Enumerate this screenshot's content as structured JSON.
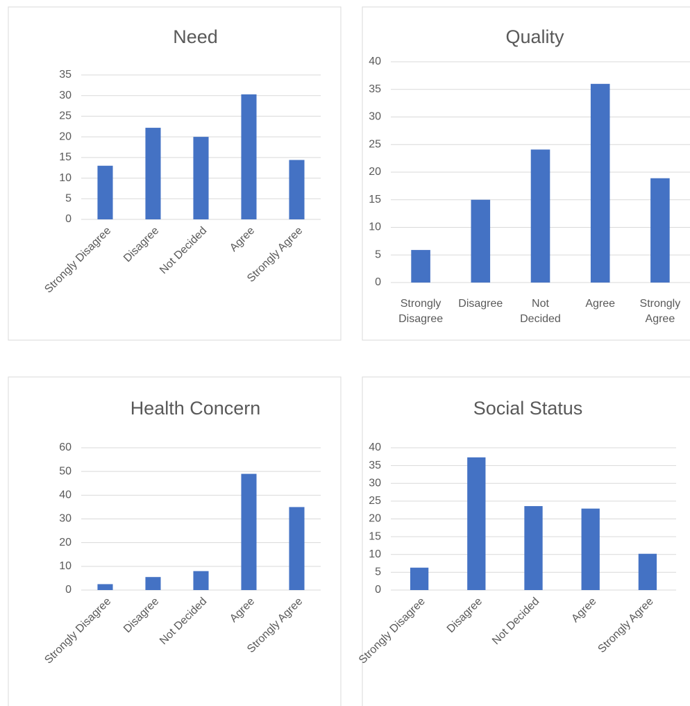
{
  "chart_data": [
    {
      "type": "bar",
      "title": "Need",
      "categories": [
        "Strongly Disagree",
        "Disagree",
        "Not Decided",
        "Agree",
        "Strongly Agree"
      ],
      "values": [
        13,
        22.2,
        20,
        30.3,
        14.4
      ],
      "color": "#4472c4",
      "ylim": [
        0,
        35
      ],
      "yticks": [
        0,
        5,
        10,
        15,
        20,
        25,
        30,
        35
      ],
      "grid": true
    },
    {
      "type": "bar",
      "title": "Quality",
      "categories": [
        "Strongly Disagree",
        "Disagree",
        "Not Decided",
        "Agree",
        "Strongly Agree"
      ],
      "values": [
        5.9,
        15,
        24.1,
        36,
        18.9
      ],
      "color": "#4472c4",
      "ylim": [
        0,
        40
      ],
      "yticks": [
        0,
        5,
        10,
        15,
        20,
        25,
        30,
        35,
        40
      ],
      "grid": true
    },
    {
      "type": "bar",
      "title": "Health Concern",
      "categories": [
        "Strongly Disagree",
        "Disagree",
        "Not Decided",
        "Agree",
        "Strongly Agree"
      ],
      "values": [
        2.5,
        5.5,
        8,
        49,
        35
      ],
      "color": "#4472c4",
      "ylim": [
        0,
        60
      ],
      "yticks": [
        0,
        10,
        20,
        30,
        40,
        50,
        60
      ],
      "grid": true
    },
    {
      "type": "bar",
      "title": "Social Status",
      "categories": [
        "Strongly Disagree",
        "Disagree",
        "Not Decided",
        "Agree",
        "Strongly Agree"
      ],
      "values": [
        6.3,
        37.3,
        23.6,
        22.9,
        10.2
      ],
      "color": "#4472c4",
      "ylim": [
        0,
        40
      ],
      "yticks": [
        0,
        5,
        10,
        15,
        20,
        25,
        30,
        35,
        40
      ],
      "grid": true
    }
  ]
}
